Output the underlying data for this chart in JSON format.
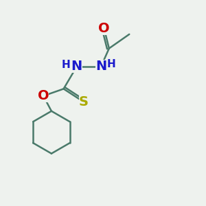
{
  "bg_color": "#eef2ee",
  "bond_color": "#4a7a6a",
  "N_color": "#1a1acc",
  "O_color": "#cc0000",
  "S_color": "#aaaa00",
  "line_width": 1.8,
  "font_size_atom": 14,
  "font_size_H": 11,
  "xlim": [
    0,
    10
  ],
  "ylim": [
    0,
    10
  ]
}
